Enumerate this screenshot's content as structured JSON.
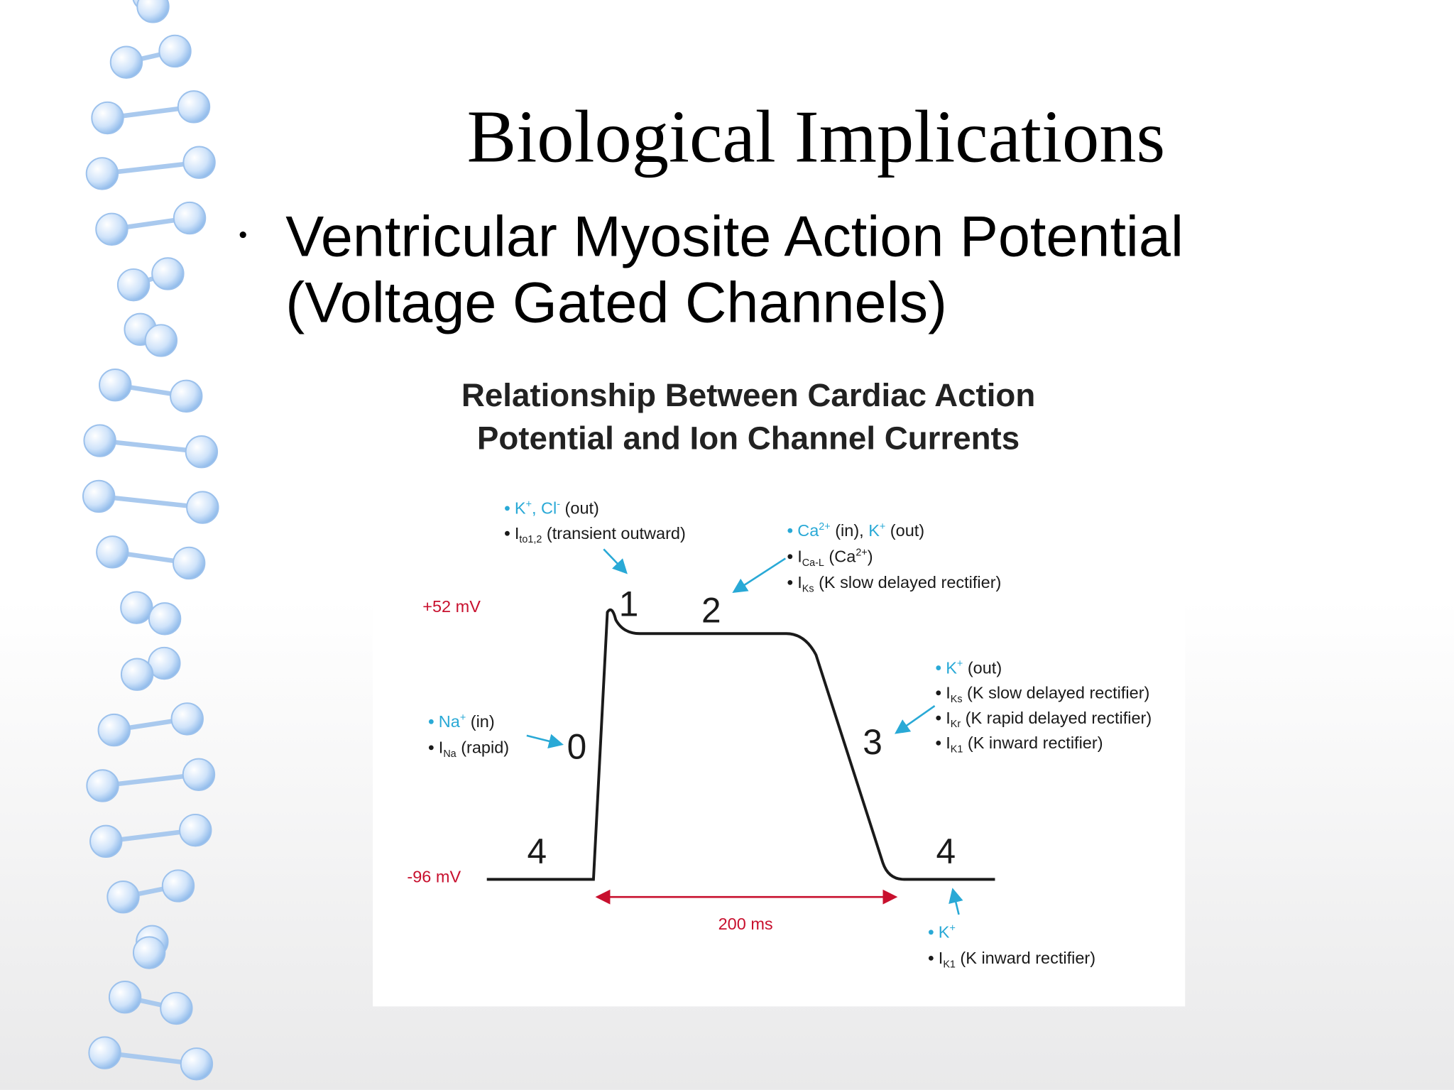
{
  "slide": {
    "title": "Biological Implications",
    "bullet": [
      "Ventricular Myosite Action Potential",
      "(Voltage Gated Channels)"
    ]
  },
  "figure": {
    "title": [
      "Relationship Between Cardiac Action",
      "Potential and Ion Channel Currents"
    ],
    "voltage_labels": [
      "+52 mV",
      "-96 mV"
    ],
    "duration": "200 ms",
    "phases": [
      "0",
      "1",
      "2",
      "3",
      "4",
      "4"
    ],
    "annotations": [
      {
        "lines": [
          [
            {
              "text": "Na",
              "style": "ion"
            },
            {
              "text": "+",
              "style": "ion-sup"
            },
            {
              "text": " (in)",
              "style": "plain"
            }
          ],
          [
            {
              "text": "I",
              "style": "plain"
            },
            {
              "text": "Na",
              "style": "sub"
            },
            {
              "text": " (rapid)",
              "style": "plain"
            }
          ]
        ]
      },
      {
        "lines": [
          [
            {
              "text": "K",
              "style": "ion"
            },
            {
              "text": "+",
              "style": "ion-sup"
            },
            {
              "text": ", Cl",
              "style": "ion"
            },
            {
              "text": "-",
              "style": "ion-sup"
            },
            {
              "text": " (out)",
              "style": "plain"
            }
          ],
          [
            {
              "text": "I",
              "style": "plain"
            },
            {
              "text": "to1,2",
              "style": "sub"
            },
            {
              "text": " (transient outward)",
              "style": "plain"
            }
          ]
        ]
      },
      {
        "lines": [
          [
            {
              "text": "Ca",
              "style": "ion"
            },
            {
              "text": "2+",
              "style": "ion-sup"
            },
            {
              "text": " (in), ",
              "style": "plain"
            },
            {
              "text": "K",
              "style": "ion"
            },
            {
              "text": "+",
              "style": "ion-sup"
            },
            {
              "text": " (out)",
              "style": "plain"
            }
          ],
          [
            {
              "text": "I",
              "style": "plain"
            },
            {
              "text": "Ca-L",
              "style": "sub"
            },
            {
              "text": " (Ca",
              "style": "plain"
            },
            {
              "text": "2+",
              "style": "sup"
            },
            {
              "text": ")",
              "style": "plain"
            }
          ],
          [
            {
              "text": "I",
              "style": "plain"
            },
            {
              "text": "Ks",
              "style": "sub"
            },
            {
              "text": " (K slow delayed rectifier)",
              "style": "plain"
            }
          ]
        ]
      },
      {
        "lines": [
          [
            {
              "text": "K",
              "style": "ion"
            },
            {
              "text": "+",
              "style": "ion-sup"
            },
            {
              "text": " (out)",
              "style": "plain"
            }
          ],
          [
            {
              "text": "I",
              "style": "plain"
            },
            {
              "text": "Ks",
              "style": "sub"
            },
            {
              "text": " (K slow delayed rectifier)",
              "style": "plain"
            }
          ],
          [
            {
              "text": "I",
              "style": "plain"
            },
            {
              "text": "Kr",
              "style": "sub"
            },
            {
              "text": " (K rapid delayed rectifier)",
              "style": "plain"
            }
          ],
          [
            {
              "text": "I",
              "style": "plain"
            },
            {
              "text": "K1",
              "style": "sub"
            },
            {
              "text": " (K inward rectifier)",
              "style": "plain"
            }
          ]
        ]
      },
      {
        "lines": [
          [
            {
              "text": "K",
              "style": "ion"
            },
            {
              "text": "+",
              "style": "ion-sup"
            }
          ],
          [
            {
              "text": "I",
              "style": "plain"
            },
            {
              "text": "K1",
              "style": "sub"
            },
            {
              "text": " (K inward rectifier)",
              "style": "plain"
            }
          ]
        ]
      }
    ]
  }
}
